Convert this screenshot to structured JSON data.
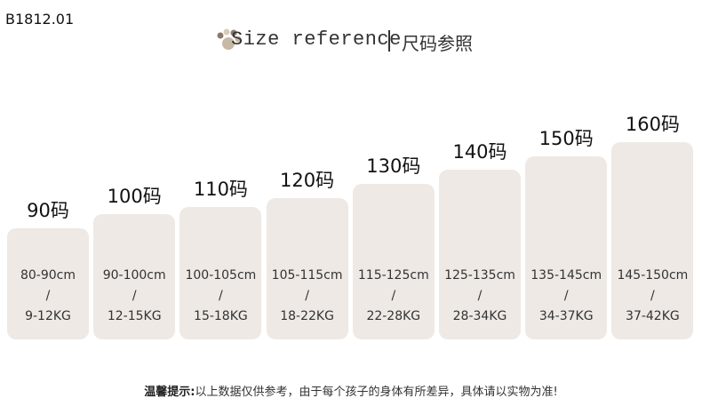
{
  "code": "B1812.01",
  "title_en": "Size reference",
  "title_cn": "尺码参照",
  "sizes": [
    {
      "label": "90码",
      "height": "80-90cm",
      "divider": "/",
      "weight": "9-12KG"
    },
    {
      "label": "100码",
      "height": "90-100cm",
      "divider": "/",
      "weight": "12-15KG"
    },
    {
      "label": "110码",
      "height": "100-105cm",
      "divider": "/",
      "weight": "15-18KG"
    },
    {
      "label": "120码",
      "height": "105-115cm",
      "divider": "/",
      "weight": "18-22KG"
    },
    {
      "label": "130码",
      "height": "115-125cm",
      "divider": "/",
      "weight": "22-28KG"
    },
    {
      "label": "140码",
      "height": "125-135cm",
      "divider": "/",
      "weight": "28-34KG"
    },
    {
      "label": "150码",
      "height": "135-145cm",
      "divider": "/",
      "weight": "34-37KG"
    },
    {
      "label": "160码",
      "height": "145-150cm",
      "divider": "/",
      "weight": "37-42KG"
    }
  ],
  "footer": {
    "label": "温馨提示:",
    "text": "以上数据仅供参考，由于每个孩子的身体有所差异，具体请以实物为准!"
  }
}
